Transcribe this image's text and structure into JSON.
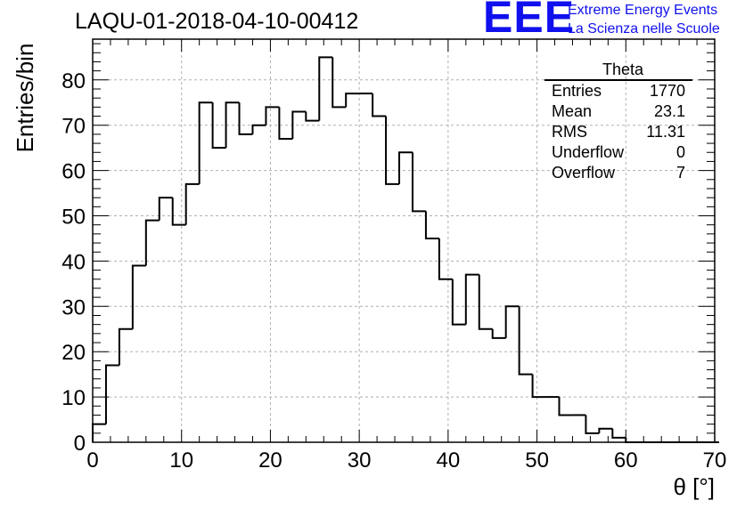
{
  "chart_data": {
    "type": "histogram",
    "title": "LAQU-01-2018-04-10-00412",
    "xlabel": "θ [°]",
    "ylabel": "Entries/bin",
    "xlim": [
      0,
      70
    ],
    "ylim": [
      0,
      89
    ],
    "x_ticks": [
      "0",
      "10",
      "20",
      "30",
      "40",
      "50",
      "60",
      "70"
    ],
    "y_ticks": [
      "0",
      "10",
      "20",
      "30",
      "40",
      "50",
      "60",
      "70",
      "80"
    ],
    "grid": true,
    "bin_width": 1.5,
    "bin_start": 0,
    "values": [
      4,
      17,
      25,
      39,
      49,
      54,
      48,
      57,
      75,
      65,
      75,
      68,
      70,
      74,
      67,
      73,
      71,
      85,
      74,
      77,
      77,
      72,
      57,
      64,
      51,
      45,
      36,
      26,
      37,
      25,
      23,
      30,
      15,
      10,
      10,
      6,
      6,
      2,
      3,
      1,
      0,
      0,
      0,
      0,
      0,
      0,
      0
    ]
  },
  "stats": {
    "name": "Theta",
    "rows": [
      {
        "label": "Entries",
        "value": "1770"
      },
      {
        "label": "Mean",
        "value": "23.1"
      },
      {
        "label": "RMS",
        "value": "11.31"
      },
      {
        "label": "Underflow",
        "value": "0"
      },
      {
        "label": "Overflow",
        "value": "7"
      }
    ]
  },
  "logo": {
    "mark": "EEE",
    "line1": "Extreme Energy Events",
    "line2": "La Scienza nelle Scuole"
  },
  "colors": {
    "logo": "#1010ee",
    "line": "#000000",
    "grid": "#b0b0b0"
  }
}
